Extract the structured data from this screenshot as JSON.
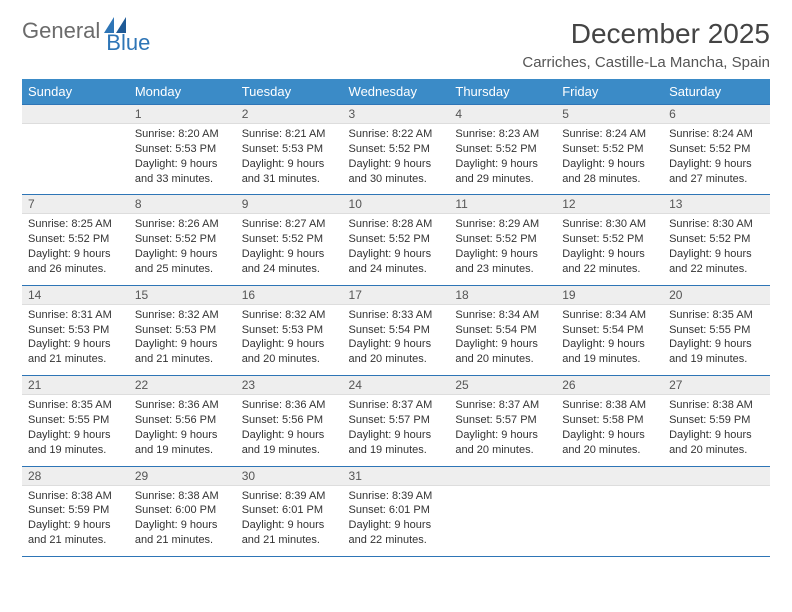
{
  "brand": {
    "word1": "General",
    "word2": "Blue"
  },
  "title": "December 2025",
  "location": "Carriches, Castille-La Mancha, Spain",
  "colors": {
    "header_bg": "#3b8bc7",
    "header_text": "#ffffff",
    "rule": "#2e75b6",
    "daynum_bg": "#eeeeee",
    "text": "#333333"
  },
  "weekdays": [
    "Sunday",
    "Monday",
    "Tuesday",
    "Wednesday",
    "Thursday",
    "Friday",
    "Saturday"
  ],
  "weeks": [
    {
      "nums": [
        "",
        "1",
        "2",
        "3",
        "4",
        "5",
        "6"
      ],
      "cells": [
        null,
        {
          "sr": "Sunrise: 8:20 AM",
          "ss": "Sunset: 5:53 PM",
          "dl": "Daylight: 9 hours and 33 minutes."
        },
        {
          "sr": "Sunrise: 8:21 AM",
          "ss": "Sunset: 5:53 PM",
          "dl": "Daylight: 9 hours and 31 minutes."
        },
        {
          "sr": "Sunrise: 8:22 AM",
          "ss": "Sunset: 5:52 PM",
          "dl": "Daylight: 9 hours and 30 minutes."
        },
        {
          "sr": "Sunrise: 8:23 AM",
          "ss": "Sunset: 5:52 PM",
          "dl": "Daylight: 9 hours and 29 minutes."
        },
        {
          "sr": "Sunrise: 8:24 AM",
          "ss": "Sunset: 5:52 PM",
          "dl": "Daylight: 9 hours and 28 minutes."
        },
        {
          "sr": "Sunrise: 8:24 AM",
          "ss": "Sunset: 5:52 PM",
          "dl": "Daylight: 9 hours and 27 minutes."
        }
      ]
    },
    {
      "nums": [
        "7",
        "8",
        "9",
        "10",
        "11",
        "12",
        "13"
      ],
      "cells": [
        {
          "sr": "Sunrise: 8:25 AM",
          "ss": "Sunset: 5:52 PM",
          "dl": "Daylight: 9 hours and 26 minutes."
        },
        {
          "sr": "Sunrise: 8:26 AM",
          "ss": "Sunset: 5:52 PM",
          "dl": "Daylight: 9 hours and 25 minutes."
        },
        {
          "sr": "Sunrise: 8:27 AM",
          "ss": "Sunset: 5:52 PM",
          "dl": "Daylight: 9 hours and 24 minutes."
        },
        {
          "sr": "Sunrise: 8:28 AM",
          "ss": "Sunset: 5:52 PM",
          "dl": "Daylight: 9 hours and 24 minutes."
        },
        {
          "sr": "Sunrise: 8:29 AM",
          "ss": "Sunset: 5:52 PM",
          "dl": "Daylight: 9 hours and 23 minutes."
        },
        {
          "sr": "Sunrise: 8:30 AM",
          "ss": "Sunset: 5:52 PM",
          "dl": "Daylight: 9 hours and 22 minutes."
        },
        {
          "sr": "Sunrise: 8:30 AM",
          "ss": "Sunset: 5:52 PM",
          "dl": "Daylight: 9 hours and 22 minutes."
        }
      ]
    },
    {
      "nums": [
        "14",
        "15",
        "16",
        "17",
        "18",
        "19",
        "20"
      ],
      "cells": [
        {
          "sr": "Sunrise: 8:31 AM",
          "ss": "Sunset: 5:53 PM",
          "dl": "Daylight: 9 hours and 21 minutes."
        },
        {
          "sr": "Sunrise: 8:32 AM",
          "ss": "Sunset: 5:53 PM",
          "dl": "Daylight: 9 hours and 21 minutes."
        },
        {
          "sr": "Sunrise: 8:32 AM",
          "ss": "Sunset: 5:53 PM",
          "dl": "Daylight: 9 hours and 20 minutes."
        },
        {
          "sr": "Sunrise: 8:33 AM",
          "ss": "Sunset: 5:54 PM",
          "dl": "Daylight: 9 hours and 20 minutes."
        },
        {
          "sr": "Sunrise: 8:34 AM",
          "ss": "Sunset: 5:54 PM",
          "dl": "Daylight: 9 hours and 20 minutes."
        },
        {
          "sr": "Sunrise: 8:34 AM",
          "ss": "Sunset: 5:54 PM",
          "dl": "Daylight: 9 hours and 19 minutes."
        },
        {
          "sr": "Sunrise: 8:35 AM",
          "ss": "Sunset: 5:55 PM",
          "dl": "Daylight: 9 hours and 19 minutes."
        }
      ]
    },
    {
      "nums": [
        "21",
        "22",
        "23",
        "24",
        "25",
        "26",
        "27"
      ],
      "cells": [
        {
          "sr": "Sunrise: 8:35 AM",
          "ss": "Sunset: 5:55 PM",
          "dl": "Daylight: 9 hours and 19 minutes."
        },
        {
          "sr": "Sunrise: 8:36 AM",
          "ss": "Sunset: 5:56 PM",
          "dl": "Daylight: 9 hours and 19 minutes."
        },
        {
          "sr": "Sunrise: 8:36 AM",
          "ss": "Sunset: 5:56 PM",
          "dl": "Daylight: 9 hours and 19 minutes."
        },
        {
          "sr": "Sunrise: 8:37 AM",
          "ss": "Sunset: 5:57 PM",
          "dl": "Daylight: 9 hours and 19 minutes."
        },
        {
          "sr": "Sunrise: 8:37 AM",
          "ss": "Sunset: 5:57 PM",
          "dl": "Daylight: 9 hours and 20 minutes."
        },
        {
          "sr": "Sunrise: 8:38 AM",
          "ss": "Sunset: 5:58 PM",
          "dl": "Daylight: 9 hours and 20 minutes."
        },
        {
          "sr": "Sunrise: 8:38 AM",
          "ss": "Sunset: 5:59 PM",
          "dl": "Daylight: 9 hours and 20 minutes."
        }
      ]
    },
    {
      "nums": [
        "28",
        "29",
        "30",
        "31",
        "",
        "",
        ""
      ],
      "cells": [
        {
          "sr": "Sunrise: 8:38 AM",
          "ss": "Sunset: 5:59 PM",
          "dl": "Daylight: 9 hours and 21 minutes."
        },
        {
          "sr": "Sunrise: 8:38 AM",
          "ss": "Sunset: 6:00 PM",
          "dl": "Daylight: 9 hours and 21 minutes."
        },
        {
          "sr": "Sunrise: 8:39 AM",
          "ss": "Sunset: 6:01 PM",
          "dl": "Daylight: 9 hours and 21 minutes."
        },
        {
          "sr": "Sunrise: 8:39 AM",
          "ss": "Sunset: 6:01 PM",
          "dl": "Daylight: 9 hours and 22 minutes."
        },
        null,
        null,
        null
      ]
    }
  ]
}
